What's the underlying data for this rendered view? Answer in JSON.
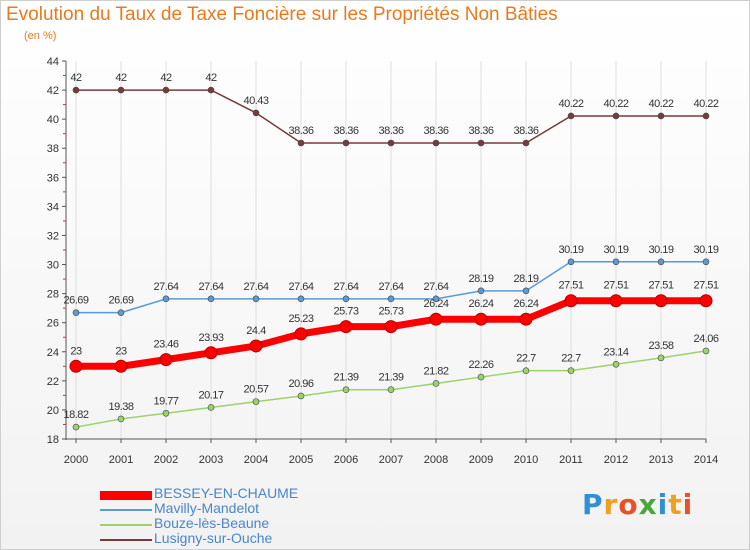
{
  "title": "Evolution du Taux de Taxe Foncière sur les Propriétés Non Bâties",
  "subtitle": "(en %)",
  "logo": {
    "text": "Proxiti",
    "letters": [
      "P",
      "r",
      "o",
      "x",
      "i",
      "t",
      "i"
    ],
    "colors": [
      "#2f8fd8",
      "#f0a020",
      "#e8502a",
      "#4aa838",
      "#2f8fd8",
      "#f0a020",
      "#e8502a"
    ]
  },
  "chart_data": {
    "type": "line",
    "title": "Evolution du Taux de Taxe Foncière sur les Propriétés Non Bâties",
    "ylabel": "(en %)",
    "xlabel": "",
    "x": [
      2000,
      2001,
      2002,
      2003,
      2004,
      2005,
      2006,
      2007,
      2008,
      2009,
      2010,
      2011,
      2012,
      2013,
      2014
    ],
    "ylim": [
      18,
      44
    ],
    "yticks": [
      18,
      20,
      22,
      24,
      26,
      28,
      30,
      32,
      34,
      36,
      38,
      40,
      42,
      44
    ],
    "grid": "vertical",
    "legend_position": "bottom-left",
    "series": [
      {
        "name": "BESSEY-EN-CHAUME",
        "color": "#ff0000",
        "values": [
          23,
          23,
          23.46,
          23.93,
          24.4,
          25.23,
          25.73,
          25.73,
          26.24,
          26.24,
          26.24,
          27.51,
          27.51,
          27.51,
          27.51
        ],
        "labels": [
          "23",
          "23",
          "23.46",
          "23.93",
          "24.4",
          "25.23",
          "25.73",
          "25.73",
          "26.24",
          "26.24",
          "26.24",
          "27.51",
          "27.51",
          "27.51",
          "27.51"
        ]
      },
      {
        "name": "Mavilly-Mandelot",
        "color": "#5b9bd5",
        "values": [
          26.69,
          26.69,
          27.64,
          27.64,
          27.64,
          27.64,
          27.64,
          27.64,
          27.64,
          28.19,
          28.19,
          30.19,
          30.19,
          30.19,
          30.19
        ],
        "labels": [
          "26.69",
          "26.69",
          "27.64",
          "27.64",
          "27.64",
          "27.64",
          "27.64",
          "27.64",
          "27.64",
          "28.19",
          "28.19",
          "30.19",
          "30.19",
          "30.19",
          "30.19"
        ]
      },
      {
        "name": "Bouze-lès-Beaune",
        "color": "#9ad36a",
        "values": [
          18.82,
          19.38,
          19.77,
          20.17,
          20.57,
          20.96,
          21.39,
          21.39,
          21.82,
          22.26,
          22.7,
          22.7,
          23.14,
          23.58,
          24.06
        ],
        "labels": [
          "18.82",
          "19.38",
          "19.77",
          "20.17",
          "20.57",
          "20.96",
          "21.39",
          "21.39",
          "21.82",
          "22.26",
          "22.7",
          "22.7",
          "23.14",
          "23.58",
          "24.06"
        ]
      },
      {
        "name": "Lusigny-sur-Ouche",
        "color": "#7a3a3a",
        "values": [
          42,
          42,
          42,
          42,
          40.43,
          38.36,
          38.36,
          38.36,
          38.36,
          38.36,
          38.36,
          40.22,
          40.22,
          40.22,
          40.22
        ],
        "labels": [
          "42",
          "42",
          "42",
          "42",
          "40.43",
          "38.36",
          "38.36",
          "38.36",
          "38.36",
          "38.36",
          "38.36",
          "40.22",
          "40.22",
          "40.22",
          "40.22"
        ]
      }
    ]
  }
}
